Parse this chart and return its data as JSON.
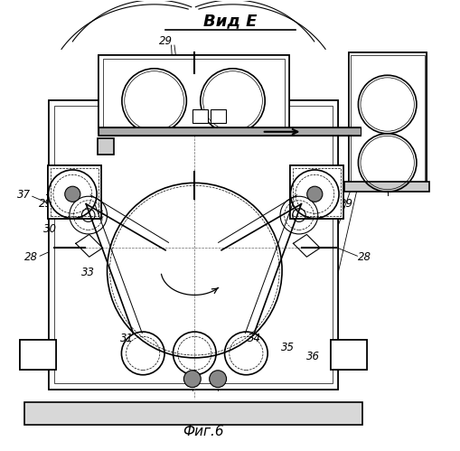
{
  "title": "Вид Е",
  "subtitle": "Фиг.6",
  "bg_color": "#ffffff",
  "line_color": "#000000"
}
